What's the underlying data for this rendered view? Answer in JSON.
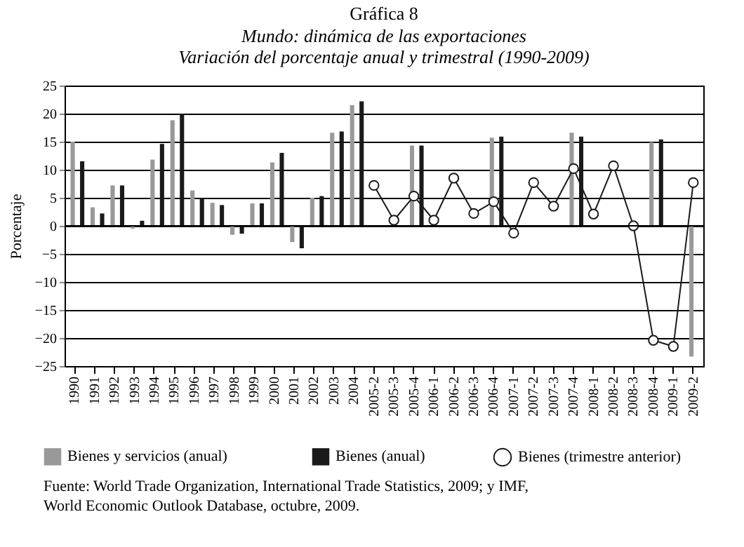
{
  "chart_data": {
    "type": "bar",
    "title": "Gráfica 8",
    "subtitle": "Mundo: dinámica de las exportaciones\nVariación del porcentaje anual y trimestral (1990-2009)",
    "ylabel": "Porcentaje",
    "categories": [
      "1990",
      "1991",
      "1992",
      "1993",
      "1994",
      "1995",
      "1996",
      "1997",
      "1998",
      "1999",
      "2000",
      "2001",
      "2002",
      "2003",
      "2004",
      "2005-2",
      "2005-3",
      "2005-4",
      "2006-1",
      "2006-2",
      "2006-3",
      "2006-4",
      "2007-1",
      "2007-2",
      "2007-3",
      "2007-4",
      "2008-1",
      "2008-2",
      "2008-3",
      "2008-4",
      "2009-1",
      "2009-2"
    ],
    "series": [
      {
        "name": "Bienes y servicios (anual)",
        "type": "bar",
        "color": "#999999",
        "values": [
          15,
          3.3,
          7.2,
          -0.5,
          11.8,
          18.8,
          6.3,
          4.1,
          -1.6,
          4,
          11.3,
          -2.9,
          5,
          16.6,
          21.5,
          null,
          null,
          14.3,
          null,
          null,
          null,
          15.7,
          null,
          null,
          null,
          16.6,
          null,
          null,
          null,
          14.9,
          null,
          -23.3
        ]
      },
      {
        "name": "Bienes (anual)",
        "type": "bar",
        "color": "#1a1a1a",
        "values": [
          11.5,
          2.2,
          7.2,
          0.9,
          14.6,
          20,
          5,
          3.7,
          -1.4,
          4,
          13,
          -4,
          5.3,
          16.8,
          22.2,
          null,
          null,
          14.3,
          null,
          null,
          null,
          15.9,
          null,
          null,
          null,
          15.9,
          null,
          null,
          null,
          15.4,
          null,
          null
        ]
      },
      {
        "name": "Bienes (trimestre anterior)",
        "type": "line",
        "color": "#1a1a1a",
        "marker": "circle",
        "values": [
          null,
          null,
          null,
          null,
          null,
          null,
          null,
          null,
          null,
          null,
          null,
          null,
          null,
          null,
          null,
          7.2,
          1,
          5.3,
          1,
          8.5,
          2.2,
          4.3,
          -1.3,
          7.7,
          3.5,
          10.2,
          2.1,
          10.7,
          0,
          -20.4,
          -21.5,
          7.7
        ]
      }
    ],
    "ylim": [
      -25,
      25
    ],
    "yticks": [
      -25,
      -20,
      -15,
      -10,
      -5,
      0,
      5,
      10,
      15,
      20,
      25
    ],
    "grid": "y",
    "legend": "bottom",
    "annotations": [
      "Fuente: World Trade Organization, International Trade Statistics, 2009; y IMF,\nWorld Economic Outlook Database, octubre, 2009."
    ]
  }
}
